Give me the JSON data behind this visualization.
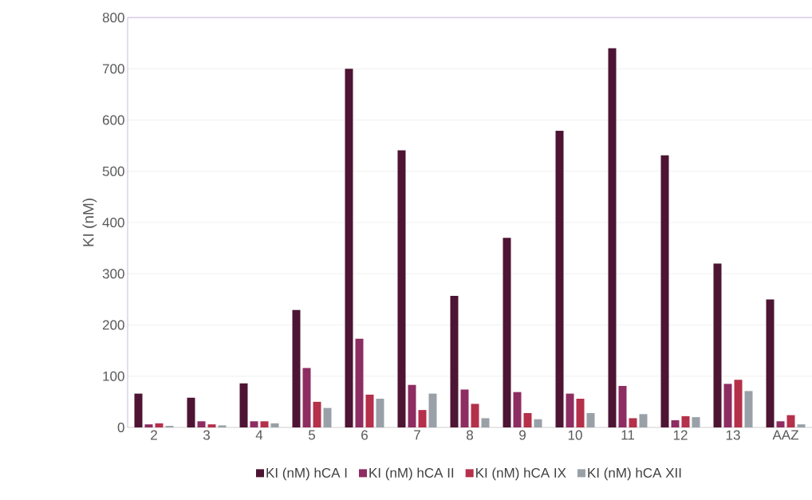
{
  "chart_data": {
    "type": "bar",
    "ylabel": "KI (nM)",
    "categories": [
      "2",
      "3",
      "4",
      "5",
      "6",
      "7",
      "8",
      "9",
      "10",
      "11",
      "12",
      "13",
      "AAZ"
    ],
    "series": [
      {
        "name": "KI (nM) hCA I",
        "color": "#4d1433",
        "values": [
          66,
          58,
          86,
          229,
          700,
          541,
          257,
          370,
          579,
          740,
          531,
          320,
          250
        ]
      },
      {
        "name": "KI (nM) hCA II",
        "color": "#8e2d62",
        "values": [
          6,
          12,
          12,
          116,
          173,
          83,
          74,
          69,
          66,
          81,
          14,
          85,
          12
        ]
      },
      {
        "name": "KI (nM) hCA IX",
        "color": "#b5304a",
        "values": [
          8,
          6,
          12,
          50,
          64,
          34,
          46,
          28,
          56,
          18,
          22,
          93,
          24
        ]
      },
      {
        "name": "KI (nM) hCA XII",
        "color": "#99a0a8",
        "values": [
          3,
          4,
          8,
          38,
          56,
          66,
          18,
          16,
          28,
          26,
          20,
          71,
          6
        ]
      }
    ],
    "ylim": [
      0,
      800
    ],
    "yticks": [
      0,
      100,
      200,
      300,
      400,
      500,
      600,
      700,
      800
    ],
    "grid": "y",
    "legend": "bottom"
  }
}
